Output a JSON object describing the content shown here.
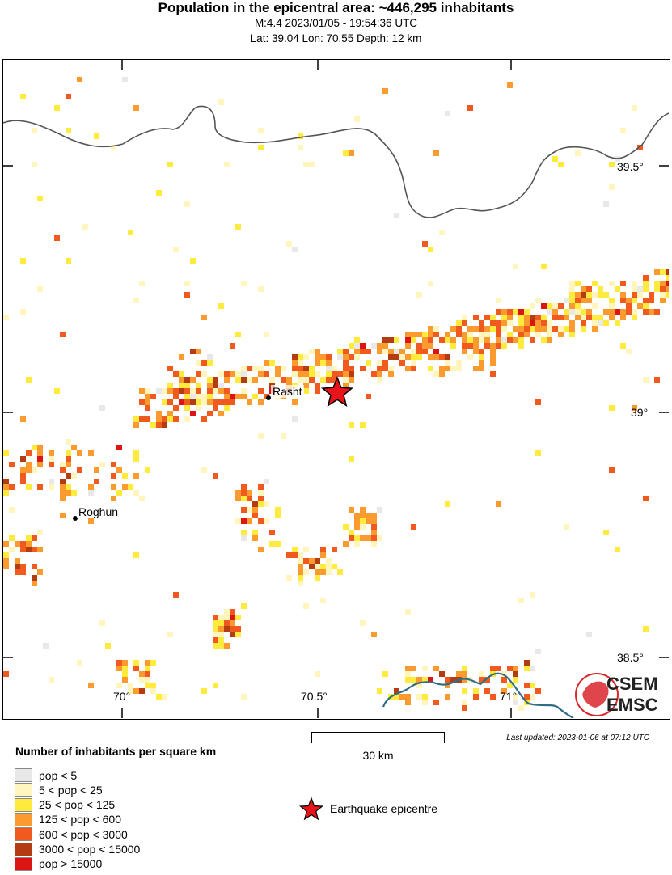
{
  "header": {
    "title": "Population in the epicentral area: ~446,295 inhabitants",
    "line2": "M:4.4 2023/01/05 - 19:54:36 UTC",
    "line3": "Lat: 39.04 Lon: 70.55 Depth: 12 km"
  },
  "map": {
    "lat_labels": [
      "39.5°",
      "39°",
      "38.5°"
    ],
    "lon_labels": [
      "70°",
      "70.5°",
      "71°"
    ],
    "cities": [
      {
        "name": "Rasht"
      },
      {
        "name": "Roghun"
      }
    ],
    "epicenter": {
      "lat": 39.04,
      "lon": 70.55
    },
    "colors": {
      "border": "#555555",
      "river": "#2f6d8a",
      "epicenter": "#e8141c"
    }
  },
  "scale_bar": {
    "label": "30 km"
  },
  "last_updated": "Last updated: 2023-01-06 at 07:12 UTC",
  "legend": {
    "title": "Number of inhabitants per square km",
    "items": [
      {
        "label": "pop < 5",
        "color": "#e8e8e8"
      },
      {
        "label": "5 < pop < 25",
        "color": "#fff5bd"
      },
      {
        "label": "25 < pop < 125",
        "color": "#ffeb3d"
      },
      {
        "label": "125 < pop < 600",
        "color": "#fb9a2e"
      },
      {
        "label": "600 < pop < 3000",
        "color": "#f05a1e"
      },
      {
        "label": "3000 < pop < 15000",
        "color": "#b43c12"
      },
      {
        "label": "pop > 15000",
        "color": "#dd1414"
      }
    ],
    "epicentre_label": "Earthquake epicentre"
  },
  "logo": {
    "line1": "CSEM",
    "line2": "EMSC"
  }
}
